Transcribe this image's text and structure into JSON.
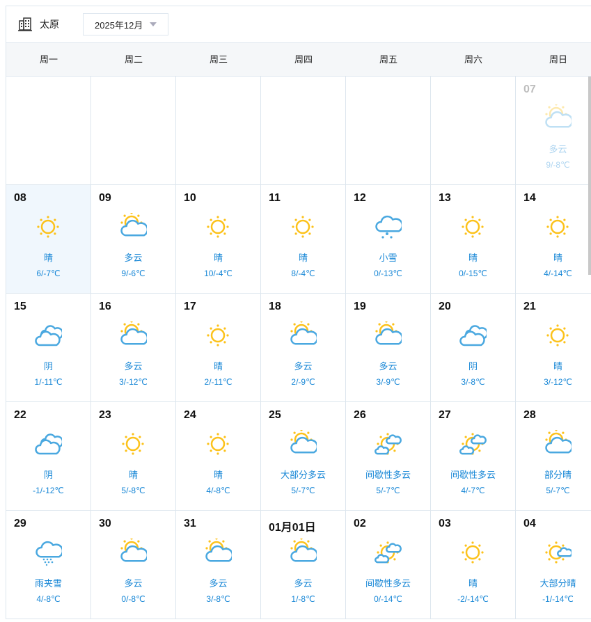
{
  "city": "太原",
  "month_select": "2025年12月",
  "weekdays": [
    "周一",
    "周二",
    "周三",
    "周四",
    "周五",
    "周六",
    "周日"
  ],
  "colors": {
    "sun": "#fcc21b",
    "cloud": "#4aa8e0",
    "text": "#1686d6",
    "today_bg": "#f0f7fd"
  },
  "weeks": [
    [
      null,
      null,
      null,
      null,
      null,
      null,
      {
        "day": "07",
        "icon": "partly-cloudy",
        "cond": "多云",
        "temp": "9/-8℃",
        "faded": true
      }
    ],
    [
      {
        "day": "08",
        "icon": "sunny",
        "cond": "晴",
        "temp": "6/-7℃",
        "today": true
      },
      {
        "day": "09",
        "icon": "partly-cloudy",
        "cond": "多云",
        "temp": "9/-6℃"
      },
      {
        "day": "10",
        "icon": "sunny",
        "cond": "晴",
        "temp": "10/-4℃"
      },
      {
        "day": "11",
        "icon": "sunny",
        "cond": "晴",
        "temp": "8/-4℃"
      },
      {
        "day": "12",
        "icon": "snow",
        "cond": "小雪",
        "temp": "0/-13℃"
      },
      {
        "day": "13",
        "icon": "sunny",
        "cond": "晴",
        "temp": "0/-15℃"
      },
      {
        "day": "14",
        "icon": "sunny",
        "cond": "晴",
        "temp": "4/-14℃"
      }
    ],
    [
      {
        "day": "15",
        "icon": "overcast",
        "cond": "阴",
        "temp": "1/-11℃"
      },
      {
        "day": "16",
        "icon": "partly-cloudy",
        "cond": "多云",
        "temp": "3/-12℃"
      },
      {
        "day": "17",
        "icon": "sunny",
        "cond": "晴",
        "temp": "2/-11℃"
      },
      {
        "day": "18",
        "icon": "partly-cloudy",
        "cond": "多云",
        "temp": "2/-9℃"
      },
      {
        "day": "19",
        "icon": "partly-cloudy",
        "cond": "多云",
        "temp": "3/-9℃"
      },
      {
        "day": "20",
        "icon": "overcast",
        "cond": "阴",
        "temp": "3/-8℃"
      },
      {
        "day": "21",
        "icon": "sunny",
        "cond": "晴",
        "temp": "3/-12℃"
      }
    ],
    [
      {
        "day": "22",
        "icon": "overcast",
        "cond": "阴",
        "temp": "-1/-12℃"
      },
      {
        "day": "23",
        "icon": "sunny",
        "cond": "晴",
        "temp": "5/-8℃"
      },
      {
        "day": "24",
        "icon": "sunny",
        "cond": "晴",
        "temp": "4/-8℃"
      },
      {
        "day": "25",
        "icon": "partly-cloudy",
        "cond": "大部分多云",
        "temp": "5/-7℃"
      },
      {
        "day": "26",
        "icon": "intermittent-clouds",
        "cond": "间歇性多云",
        "temp": "5/-7℃"
      },
      {
        "day": "27",
        "icon": "intermittent-clouds",
        "cond": "间歇性多云",
        "temp": "4/-7℃"
      },
      {
        "day": "28",
        "icon": "partly-cloudy",
        "cond": "部分晴",
        "temp": "5/-7℃"
      }
    ],
    [
      {
        "day": "29",
        "icon": "sleet",
        "cond": "雨夹雪",
        "temp": "4/-8℃"
      },
      {
        "day": "30",
        "icon": "partly-cloudy",
        "cond": "多云",
        "temp": "0/-8℃"
      },
      {
        "day": "31",
        "icon": "partly-cloudy",
        "cond": "多云",
        "temp": "3/-8℃"
      },
      {
        "day": "01月01日",
        "icon": "partly-cloudy",
        "cond": "多云",
        "temp": "1/-8℃"
      },
      {
        "day": "02",
        "icon": "intermittent-clouds",
        "cond": "间歇性多云",
        "temp": "0/-14℃"
      },
      {
        "day": "03",
        "icon": "sunny",
        "cond": "晴",
        "temp": "-2/-14℃"
      },
      {
        "day": "04",
        "icon": "mostly-sunny",
        "cond": "大部分晴",
        "temp": "-1/-14℃"
      }
    ]
  ]
}
